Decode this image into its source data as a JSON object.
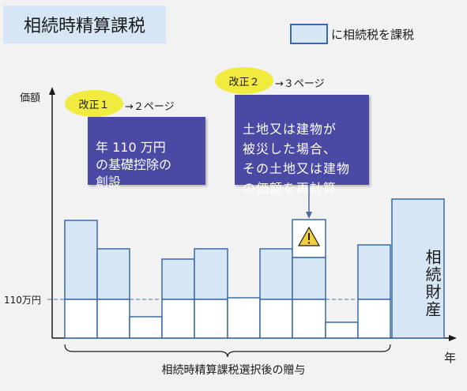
{
  "title": "相続時精算課税",
  "legend": {
    "label": "に相続税を課税"
  },
  "axes": {
    "y_label": "価額",
    "x_label": "年",
    "threshold_label": "110万円"
  },
  "revisions": [
    {
      "badge": "改正１",
      "ref": "→２ページ",
      "description": "年 110 万円\nの基礎控除の\n創設"
    },
    {
      "badge": "改正２",
      "ref": "→３ページ",
      "description": "土地又は建物が\n被災した場合、\nその土地又は建物\nの価額を再計算"
    }
  ],
  "warning_icon": "warning-triangle-icon",
  "inheritance_label": "相続財産",
  "bottom_caption": "相続時精算課税選択後の贈与",
  "colors": {
    "taxed_fill": "#d6e6f5",
    "bar_stroke": "#3a6aa8",
    "callout_bg": "#4a4aa5",
    "badge_bg": "#f1ea3f",
    "warning": "#f1d03a"
  },
  "gift_count": 10,
  "inheritance_count": 1
}
